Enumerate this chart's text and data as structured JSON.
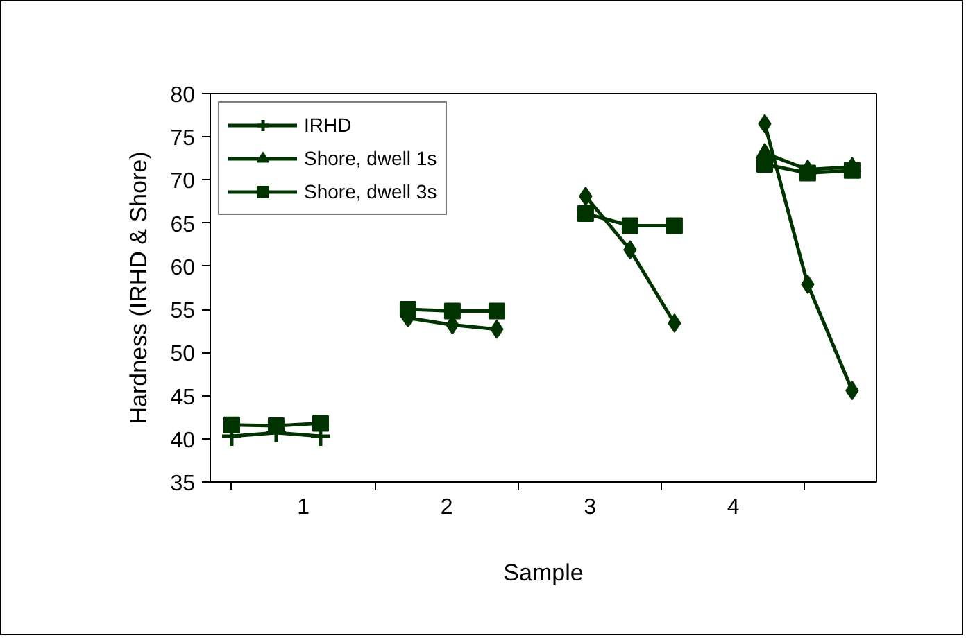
{
  "chart_data": {
    "type": "line",
    "xlabel": "Sample",
    "ylabel": "Hardness (IRHD & Shore)",
    "x": [
      0.5,
      0.81,
      1.12,
      1.5,
      1.73,
      2.04,
      2.35,
      2.5,
      2.97,
      3.28,
      3.59,
      3.9,
      4.22,
      4.52,
      4.83
    ],
    "xlim": [
      0.35,
      5.0
    ],
    "xticks": [
      {
        "value": 0.5,
        "label": null
      },
      {
        "value": 1,
        "label": "1"
      },
      {
        "value": 1.5,
        "label": null
      },
      {
        "value": 2,
        "label": "2"
      },
      {
        "value": 2.5,
        "label": null
      },
      {
        "value": 3,
        "label": "3"
      },
      {
        "value": 3.5,
        "label": null
      },
      {
        "value": 4,
        "label": "4"
      },
      {
        "value": 4.5,
        "label": null
      }
    ],
    "ylim": [
      35,
      80
    ],
    "yticks": [
      35,
      40,
      45,
      50,
      55,
      60,
      65,
      70,
      75,
      80
    ],
    "series": [
      {
        "name": "IRHD",
        "color": "#003300",
        "marker": "cross",
        "values": [
          40.3,
          40.7,
          40.3,
          null,
          null,
          null,
          null,
          null,
          null,
          null,
          null,
          null,
          null,
          null,
          null
        ]
      },
      {
        "name": "Shore, dwell 1s",
        "color": "#003300",
        "marker": "triangle",
        "values": [
          null,
          null,
          null,
          null,
          null,
          null,
          null,
          null,
          null,
          null,
          null,
          null,
          73.1,
          71.2,
          71.5
        ]
      },
      {
        "name": "Shore, dwell 3s",
        "color": "#003300",
        "marker": "square",
        "values": [
          41.6,
          41.5,
          41.8,
          null,
          55.0,
          54.8,
          54.8,
          null,
          66.1,
          64.7,
          64.7,
          null,
          71.8,
          70.8,
          71.1
        ]
      },
      {
        "color": "#003300",
        "marker": "diamond",
        "values": [
          null,
          null,
          null,
          null,
          54.0,
          53.2,
          52.7,
          null,
          68.1,
          61.9,
          53.4,
          null,
          76.5,
          57.9,
          45.6
        ]
      }
    ],
    "grid": false,
    "legend": "top left"
  }
}
